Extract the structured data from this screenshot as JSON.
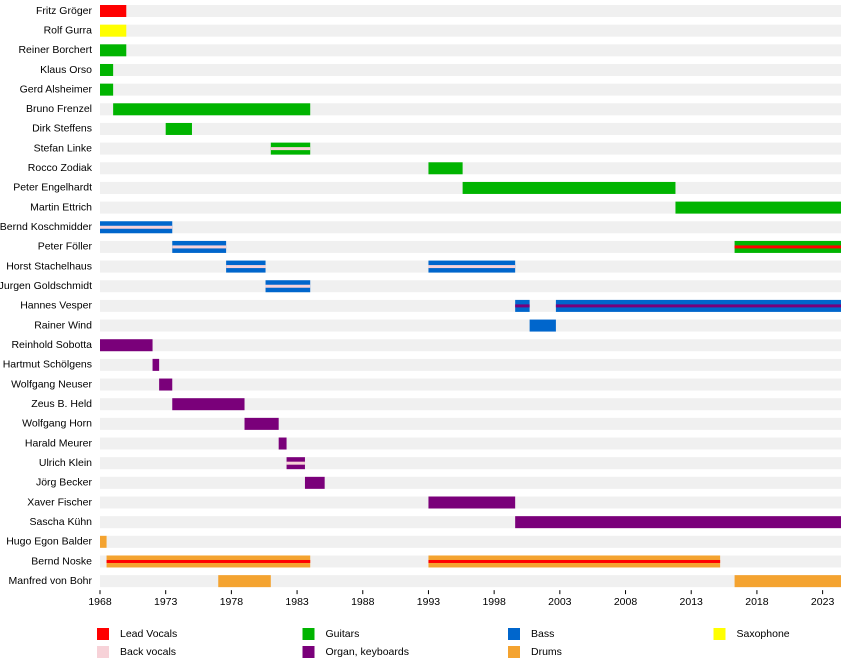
{
  "chart_data": {
    "type": "timeline",
    "xlim": [
      1968,
      2024.4
    ],
    "xticks": [
      1968,
      1973,
      1978,
      1983,
      1988,
      1993,
      1998,
      2003,
      2008,
      2013,
      2018,
      2023
    ],
    "roles": [
      {
        "name": "Lead Vocals",
        "color": "#ff0000"
      },
      {
        "name": "Back vocals",
        "color": "#f7d2d8"
      },
      {
        "name": "Guitars",
        "color": "#00b400"
      },
      {
        "name": "Organ, keyboards",
        "color": "#7a007a"
      },
      {
        "name": "Bass",
        "color": "#0066cc"
      },
      {
        "name": "Drums",
        "color": "#f4a330"
      },
      {
        "name": "Saxophone",
        "color": "#ffff00"
      }
    ],
    "rows": [
      {
        "name": "Fritz Gröger",
        "periods": [
          {
            "start": 1968,
            "end": 1970,
            "role": 0
          }
        ]
      },
      {
        "name": "Rolf Gurra",
        "periods": [
          {
            "start": 1968,
            "end": 1970,
            "role": 6
          }
        ]
      },
      {
        "name": "Reiner Borchert",
        "periods": [
          {
            "start": 1968,
            "end": 1970,
            "role": 2
          }
        ]
      },
      {
        "name": "Klaus Orso",
        "periods": [
          {
            "start": 1968,
            "end": 1969,
            "role": 2
          }
        ]
      },
      {
        "name": "Gerd Alsheimer",
        "periods": [
          {
            "start": 1968,
            "end": 1969,
            "role": 2
          }
        ]
      },
      {
        "name": "Bruno Frenzel",
        "periods": [
          {
            "start": 1969,
            "end": 1984,
            "role": 2
          }
        ]
      },
      {
        "name": "Dirk Steffens",
        "periods": [
          {
            "start": 1973,
            "end": 1975,
            "role": 2
          }
        ]
      },
      {
        "name": "Stefan Linke",
        "periods": [
          {
            "start": 1981,
            "end": 1984,
            "role": 2,
            "secondary": 1
          }
        ]
      },
      {
        "name": "Rocco Zodiak",
        "periods": [
          {
            "start": 1993,
            "end": 1995.6,
            "role": 2
          }
        ]
      },
      {
        "name": "Peter Engelhardt",
        "periods": [
          {
            "start": 1995.6,
            "end": 2011.8,
            "role": 2
          }
        ]
      },
      {
        "name": "Martin Ettrich",
        "periods": [
          {
            "start": 2011.8,
            "end": 2024.4,
            "role": 2
          }
        ]
      },
      {
        "name": "Bernd Koschmidder",
        "periods": [
          {
            "start": 1968,
            "end": 1973.5,
            "role": 4,
            "secondary": 1
          }
        ]
      },
      {
        "name": "Peter Föller",
        "periods": [
          {
            "start": 1973.5,
            "end": 1977.6,
            "role": 4,
            "secondary": 1
          },
          {
            "start": 2016.3,
            "end": 2024.4,
            "role": 2,
            "secondary": 0
          }
        ]
      },
      {
        "name": "Horst Stachelhaus",
        "periods": [
          {
            "start": 1977.6,
            "end": 1980.6,
            "role": 4,
            "secondary": 1
          },
          {
            "start": 1993,
            "end": 1999.6,
            "role": 4,
            "secondary": 1
          }
        ]
      },
      {
        "name": "Jurgen Goldschmidt",
        "periods": [
          {
            "start": 1980.6,
            "end": 1984,
            "role": 4,
            "secondary": 1
          }
        ]
      },
      {
        "name": "Hannes Vesper",
        "periods": [
          {
            "start": 1999.6,
            "end": 2000.7,
            "role": 4,
            "secondary": 3
          },
          {
            "start": 2002.7,
            "end": 2024.4,
            "role": 4,
            "secondary": 3
          }
        ]
      },
      {
        "name": "Rainer Wind",
        "periods": [
          {
            "start": 2000.7,
            "end": 2002.7,
            "role": 4
          }
        ]
      },
      {
        "name": "Reinhold Sobotta",
        "periods": [
          {
            "start": 1968,
            "end": 1972,
            "role": 3
          }
        ]
      },
      {
        "name": "Hartmut Schölgens",
        "periods": [
          {
            "start": 1972,
            "end": 1972.5,
            "role": 3
          }
        ]
      },
      {
        "name": "Wolfgang Neuser",
        "periods": [
          {
            "start": 1972.5,
            "end": 1973.5,
            "role": 3
          }
        ]
      },
      {
        "name": "Zeus B. Held",
        "periods": [
          {
            "start": 1973.5,
            "end": 1979,
            "role": 3
          }
        ]
      },
      {
        "name": "Wolfgang Horn",
        "periods": [
          {
            "start": 1979,
            "end": 1981.6,
            "role": 3
          }
        ]
      },
      {
        "name": "Harald Meurer",
        "periods": [
          {
            "start": 1981.6,
            "end": 1982.2,
            "role": 3
          }
        ]
      },
      {
        "name": "Ulrich Klein",
        "periods": [
          {
            "start": 1982.2,
            "end": 1983.6,
            "role": 3,
            "secondary": 1
          }
        ]
      },
      {
        "name": "Jörg Becker",
        "periods": [
          {
            "start": 1983.6,
            "end": 1985.1,
            "role": 3
          }
        ]
      },
      {
        "name": "Xaver Fischer",
        "periods": [
          {
            "start": 1993,
            "end": 1999.6,
            "role": 3
          }
        ]
      },
      {
        "name": "Sascha Kühn",
        "periods": [
          {
            "start": 1999.6,
            "end": 2024.4,
            "role": 3
          }
        ]
      },
      {
        "name": "Hugo Egon Balder",
        "periods": [
          {
            "start": 1968,
            "end": 1968.5,
            "role": 5
          }
        ]
      },
      {
        "name": "Bernd Noske",
        "periods": [
          {
            "start": 1968.5,
            "end": 1984,
            "role": 5,
            "secondary": 0
          },
          {
            "start": 1993,
            "end": 2015.2,
            "role": 5,
            "secondary": 0
          }
        ]
      },
      {
        "name": "Manfred von Bohr",
        "periods": [
          {
            "start": 1977,
            "end": 1981,
            "role": 5
          },
          {
            "start": 2016.3,
            "end": 2024.4,
            "role": 5
          }
        ]
      }
    ]
  }
}
